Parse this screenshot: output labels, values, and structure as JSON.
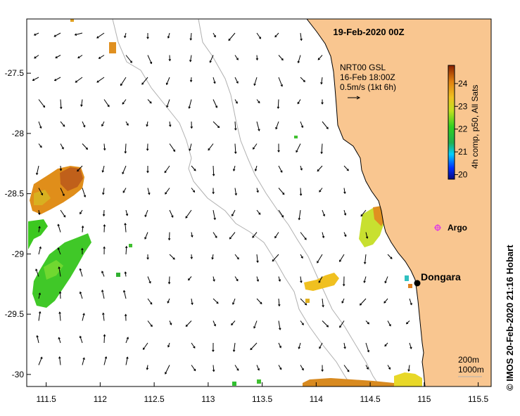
{
  "title": "19-Feb-2020 00Z",
  "overlay": {
    "line1": "NRT00 GSL",
    "line2": "16-Feb 18:00Z",
    "line3": "0.5m/s (1kt 6h)"
  },
  "colorbar": {
    "label": "4h comp, p50, All Sats",
    "ticks": [
      "24",
      "23",
      "22",
      "21",
      "20"
    ],
    "range": [
      19.8,
      24.8
    ]
  },
  "places": {
    "argo": "Argo",
    "dongara": "Dongara"
  },
  "depth_legend": {
    "line1": "200m",
    "line2": "1000m"
  },
  "credit": "© IMOS 20-Feb-2020 21:16 Hobart",
  "axes": {
    "lon_ticks": [
      "111.5",
      "112",
      "112.5",
      "113",
      "113.5",
      "114",
      "114.5",
      "115",
      "115.5"
    ],
    "lat_ticks": [
      "-27.5",
      "-28",
      "-28.5",
      "-29",
      "-29.5",
      "-30"
    ],
    "lon_range": [
      111.32,
      115.62
    ],
    "lat_range": [
      -30.1,
      -27.05
    ]
  },
  "colors": {
    "land": "#f9c690",
    "coast": "#000000",
    "isobath": "#b0b0b0",
    "argo": "#e040e0",
    "station": "#000000"
  }
}
